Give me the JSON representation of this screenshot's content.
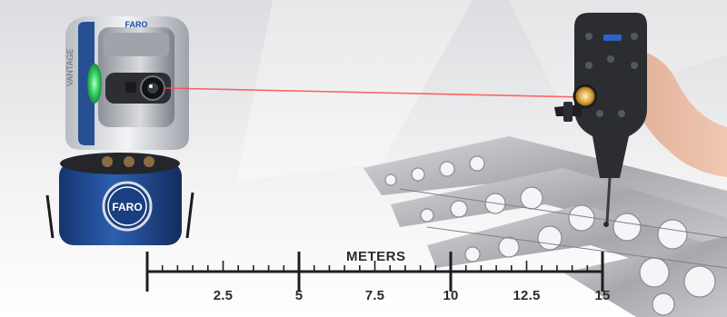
{
  "brand": {
    "logo_text": "FARO",
    "product_name": "VANTAGE",
    "accent_color": "#1f4f9c",
    "laser_color": "#ff4d4d",
    "status_light_color": "#39d96a"
  },
  "scale_bar": {
    "title": "METERS",
    "unit": "meters",
    "min": 0,
    "max": 15,
    "minor_step": 0.5,
    "major_step": 5,
    "labels": [
      "2.5",
      "5",
      "7.5",
      "10",
      "12.5",
      "15"
    ]
  },
  "background": {
    "top_color": "#e4e5e7",
    "bottom_color": "#ffffff"
  }
}
